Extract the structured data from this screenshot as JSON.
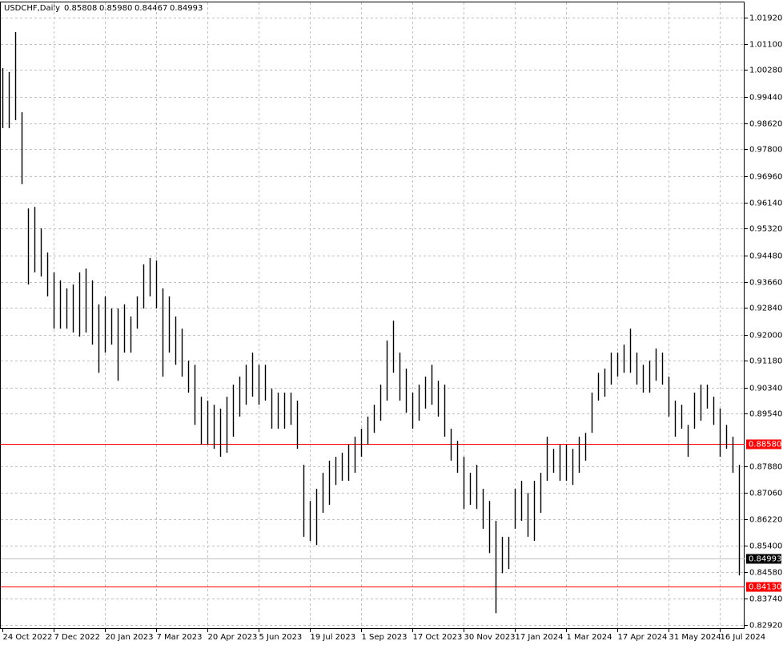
{
  "chart_data": {
    "type": "range_bar",
    "title": "USDCHF,Daily",
    "header_values": [
      "0.85808",
      "0.85980",
      "0.84467",
      "0.84993"
    ],
    "categories": [
      "24 Oct 2022",
      null,
      null,
      null,
      null,
      null,
      null,
      null,
      "7 Dec 2022",
      null,
      null,
      null,
      null,
      null,
      null,
      null,
      "20 Jan 2023",
      null,
      null,
      null,
      null,
      null,
      null,
      null,
      "7 Mar 2023",
      null,
      null,
      null,
      null,
      null,
      null,
      null,
      "20 Apr 2023",
      null,
      null,
      null,
      null,
      null,
      null,
      null,
      "5 Jun 2023",
      null,
      null,
      null,
      null,
      null,
      null,
      null,
      "19 Jul 2023",
      null,
      null,
      null,
      null,
      null,
      null,
      null,
      "1 Sep 2023",
      null,
      null,
      null,
      null,
      null,
      null,
      null,
      "17 Oct 2023",
      null,
      null,
      null,
      null,
      null,
      null,
      null,
      "30 Nov 2023",
      null,
      null,
      null,
      null,
      null,
      null,
      null,
      "17 Jan 2024",
      null,
      null,
      null,
      null,
      null,
      null,
      null,
      "1 Mar 2024",
      null,
      null,
      null,
      null,
      null,
      null,
      null,
      "17 Apr 2024",
      null,
      null,
      null,
      null,
      null,
      null,
      null,
      "31 May 2024",
      null,
      null,
      null,
      null,
      null,
      null,
      null,
      "16 Jul 2024",
      null,
      null,
      null
    ],
    "high": [
      1.0034,
      1.0022,
      1.0147,
      0.9896,
      0.9595,
      0.96,
      0.9533,
      0.9457,
      0.9395,
      0.937,
      0.9345,
      0.9357,
      0.9395,
      0.9407,
      0.937,
      0.9295,
      0.932,
      0.9282,
      0.9282,
      0.9295,
      0.9257,
      0.932,
      0.942,
      0.944,
      0.9432,
      0.9345,
      0.932,
      0.9257,
      0.9219,
      0.9119,
      0.9106,
      0.9006,
      0.8994,
      0.8981,
      0.8969,
      0.9006,
      0.9044,
      0.9069,
      0.9106,
      0.9144,
      0.9106,
      0.9106,
      0.9031,
      0.9019,
      0.9019,
      0.9019,
      0.8994,
      0.8793,
      0.868,
      0.8718,
      0.8768,
      0.8806,
      0.8818,
      0.8831,
      0.8856,
      0.8881,
      0.8906,
      0.8944,
      0.8981,
      0.9044,
      0.9182,
      0.9244,
      0.9144,
      0.9094,
      0.9019,
      0.9044,
      0.9069,
      0.9106,
      0.9056,
      0.9044,
      0.8906,
      0.8868,
      0.8818,
      0.8768,
      0.8793,
      0.8718,
      0.868,
      0.8618,
      0.8568,
      0.8568,
      0.8718,
      0.8743,
      0.8705,
      0.8743,
      0.8768,
      0.8881,
      0.8843,
      0.8856,
      0.8856,
      0.8843,
      0.8881,
      0.8893,
      0.9019,
      0.9081,
      0.9094,
      0.9144,
      0.9144,
      0.9169,
      0.9219,
      0.9144,
      0.9106,
      0.9119,
      0.9157,
      0.9144,
      0.9069,
      0.8994,
      0.8981,
      0.8918,
      0.9019,
      0.9044,
      0.9044,
      0.9006,
      0.8969,
      0.8918,
      0.8881,
      0.8793
    ],
    "low": [
      0.9846,
      0.9846,
      0.9871,
      0.9671,
      0.9357,
      0.9395,
      0.9382,
      0.932,
      0.9219,
      0.9219,
      0.9219,
      0.9207,
      0.9194,
      0.9207,
      0.9169,
      0.9081,
      0.9144,
      0.9169,
      0.9056,
      0.9144,
      0.9144,
      0.9219,
      0.9282,
      0.932,
      0.9282,
      0.9069,
      0.9144,
      0.9106,
      0.9069,
      0.9019,
      0.8918,
      0.8856,
      0.8856,
      0.8843,
      0.8818,
      0.8831,
      0.8881,
      0.8944,
      0.8981,
      0.9006,
      0.8981,
      0.8994,
      0.8906,
      0.8906,
      0.8906,
      0.8918,
      0.8843,
      0.8568,
      0.8555,
      0.8542,
      0.8643,
      0.8668,
      0.873,
      0.8743,
      0.8743,
      0.8768,
      0.8818,
      0.8856,
      0.8893,
      0.8931,
      0.8994,
      0.9081,
      0.8994,
      0.8956,
      0.8906,
      0.8931,
      0.8969,
      0.8981,
      0.8944,
      0.8881,
      0.8806,
      0.8768,
      0.8655,
      0.8668,
      0.8655,
      0.8593,
      0.8517,
      0.8329,
      0.8454,
      0.8467,
      0.8593,
      0.8618,
      0.8568,
      0.8555,
      0.8643,
      0.8743,
      0.8768,
      0.8743,
      0.8743,
      0.873,
      0.8768,
      0.8806,
      0.8893,
      0.8994,
      0.9006,
      0.9044,
      0.9069,
      0.9081,
      0.9081,
      0.9044,
      0.9019,
      0.9019,
      0.9056,
      0.9044,
      0.8944,
      0.8881,
      0.8906,
      0.8818,
      0.8906,
      0.8931,
      0.8969,
      0.8918,
      0.8818,
      0.8843,
      0.8768,
      0.8447
    ],
    "color": "#000000",
    "ylim": [
      0.82795,
      1.02421
    ],
    "yticks": [
      {
        "value": 1.0192,
        "label": "1.01920"
      },
      {
        "value": 1.011,
        "label": "1.01100"
      },
      {
        "value": 1.0028,
        "label": "1.00280"
      },
      {
        "value": 0.9944,
        "label": "0.99440"
      },
      {
        "value": 0.9862,
        "label": "0.98620"
      },
      {
        "value": 0.978,
        "label": "0.97800"
      },
      {
        "value": 0.9696,
        "label": "0.96960"
      },
      {
        "value": 0.9614,
        "label": "0.96140"
      },
      {
        "value": 0.9532,
        "label": "0.95320"
      },
      {
        "value": 0.9448,
        "label": "0.94480"
      },
      {
        "value": 0.9366,
        "label": "0.93660"
      },
      {
        "value": 0.9284,
        "label": "0.92840"
      },
      {
        "value": 0.92,
        "label": "0.92000"
      },
      {
        "value": 0.9118,
        "label": "0.91180"
      },
      {
        "value": 0.9034,
        "label": "0.90340"
      },
      {
        "value": 0.8954,
        "label": "0.89540"
      },
      {
        "value": 0.8788,
        "label": "0.87880"
      },
      {
        "value": 0.8706,
        "label": "0.87060"
      },
      {
        "value": 0.8622,
        "label": "0.86220"
      },
      {
        "value": 0.854,
        "label": "0.85400"
      },
      {
        "value": 0.8458,
        "label": "0.84580"
      },
      {
        "value": 0.8374,
        "label": "0.83740"
      },
      {
        "value": 0.8292,
        "label": "0.82920"
      }
    ],
    "levels": [
      {
        "value": 0.8858,
        "label": "0.88580",
        "color": "#ff0000"
      },
      {
        "value": 0.8413,
        "label": "0.84130",
        "color": "#ff0000"
      }
    ],
    "last_price": {
      "value": 0.84993,
      "label": "0.84993",
      "color": "#c0c0c0"
    },
    "grid": true
  }
}
